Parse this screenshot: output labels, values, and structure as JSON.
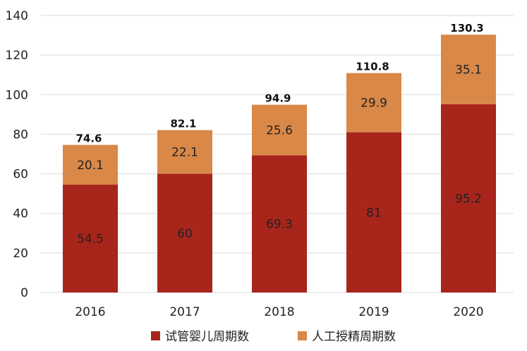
{
  "chart_data": {
    "type": "bar",
    "stacked": true,
    "categories": [
      "2016",
      "2017",
      "2018",
      "2019",
      "2020"
    ],
    "series": [
      {
        "name": "试管婴儿周期数",
        "values": [
          54.5,
          60,
          69.3,
          81,
          95.2
        ],
        "color": "#a8251b"
      },
      {
        "name": "人工授精周期数",
        "values": [
          20.1,
          22.1,
          25.6,
          29.9,
          35.1
        ],
        "color": "#d98848"
      }
    ],
    "totals": [
      "74.6",
      "82.1",
      "94.9",
      "110.8",
      "130.3"
    ],
    "segment_labels": [
      [
        "54.5",
        "60",
        "69.3",
        "81",
        "95.2"
      ],
      [
        "20.1",
        "22.1",
        "25.6",
        "29.9",
        "35.1"
      ]
    ],
    "ylim": [
      0,
      140
    ],
    "yticks": [
      "0",
      "20",
      "40",
      "60",
      "80",
      "100",
      "120",
      "140"
    ],
    "grid": true,
    "legend_position": "bottom"
  }
}
